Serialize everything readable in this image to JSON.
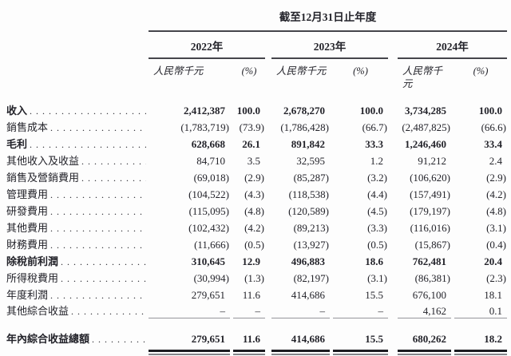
{
  "header": {
    "period_title": "截至12月31日止年度",
    "years": [
      "2022年",
      "2023年",
      "2024年"
    ],
    "unit_label": "人民幣千元",
    "percent_label": "(%)"
  },
  "table": {
    "leader_dots": ". . . . . . . . . . . . . . . . . . . . . . . . . . . . . . . . . . . .",
    "rows": [
      {
        "label": "收入",
        "a2022": "2,412,387",
        "p2022": "100.0",
        "a2023": "2,678,270",
        "p2023": "100.0",
        "a2024": "3,734,285",
        "p2024": "100.0"
      },
      {
        "label": "銷售成本",
        "a2022": "(1,783,719)",
        "p2022": "(73.9)",
        "a2023": "(1,786,428)",
        "p2023": "(66.7)",
        "a2024": "(2,487,825)",
        "p2024": "(66.6)"
      },
      {
        "label": "毛利",
        "a2022": "628,668",
        "p2022": "26.1",
        "a2023": "891,842",
        "p2023": "33.3",
        "a2024": "1,246,460",
        "p2024": "33.4"
      },
      {
        "label": "其他收入及收益",
        "a2022": "84,710",
        "p2022": "3.5",
        "a2023": "32,595",
        "p2023": "1.2",
        "a2024": "91,212",
        "p2024": "2.4"
      },
      {
        "label": "銷售及營銷費用",
        "a2022": "(69,018)",
        "p2022": "(2.9)",
        "a2023": "(85,287)",
        "p2023": "(3.2)",
        "a2024": "(106,620)",
        "p2024": "(2.9)"
      },
      {
        "label": "管理費用",
        "a2022": "(104,522)",
        "p2022": "(4.3)",
        "a2023": "(118,538)",
        "p2023": "(4.4)",
        "a2024": "(157,491)",
        "p2024": "(4.2)"
      },
      {
        "label": "研發費用",
        "a2022": "(115,095)",
        "p2022": "(4.8)",
        "a2023": "(120,589)",
        "p2023": "(4.5)",
        "a2024": "(179,197)",
        "p2024": "(4.8)"
      },
      {
        "label": "其他費用",
        "a2022": "(102,432)",
        "p2022": "(4.2)",
        "a2023": "(89,213)",
        "p2023": "(3.3)",
        "a2024": "(116,016)",
        "p2024": "(3.1)"
      },
      {
        "label": "財務費用",
        "a2022": "(11,666)",
        "p2022": "(0.5)",
        "a2023": "(13,927)",
        "p2023": "(0.5)",
        "a2024": "(15,867)",
        "p2024": "(0.4)"
      },
      {
        "label": "除稅前利潤",
        "a2022": "310,645",
        "p2022": "12.9",
        "a2023": "496,883",
        "p2023": "18.6",
        "a2024": "762,481",
        "p2024": "20.4"
      },
      {
        "label": "所得稅費用",
        "a2022": "(30,994)",
        "p2022": "(1.3)",
        "a2023": "(82,197)",
        "p2023": "(3.1)",
        "a2024": "(86,381)",
        "p2024": "(2.3)"
      },
      {
        "label": "年度利潤",
        "a2022": "279,651",
        "p2022": "11.6",
        "a2023": "414,686",
        "p2023": "15.5",
        "a2024": "676,100",
        "p2024": "18.1"
      },
      {
        "label": "其他綜合收益",
        "a2022": "–",
        "p2022": "–",
        "a2023": "–",
        "p2023": "–",
        "a2024": "4,162",
        "p2024": "0.1"
      },
      {
        "label": "年內綜合收益總額",
        "a2022": "279,651",
        "p2022": "11.6",
        "a2023": "414,686",
        "p2023": "15.5",
        "a2024": "680,262",
        "p2024": "18.2"
      }
    ]
  },
  "colors": {
    "text": "#23232a",
    "rule_dark": "#45454b",
    "rule_light": "#96969b",
    "rule_thick": "#1c1c21",
    "rule_mid": "#85858a"
  }
}
